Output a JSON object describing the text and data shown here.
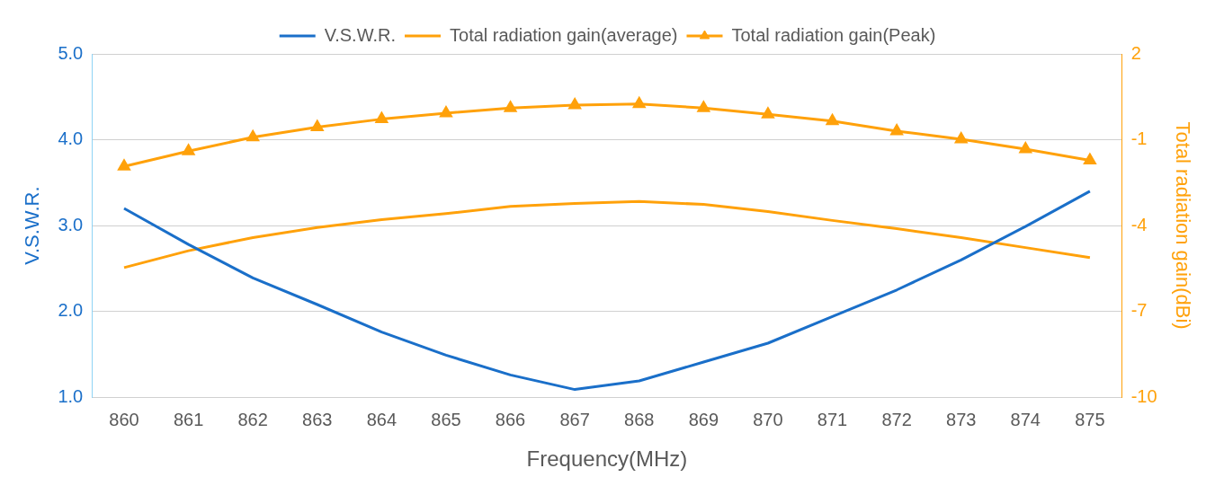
{
  "chart_data": {
    "type": "line",
    "categories": [
      "860",
      "861",
      "862",
      "863",
      "864",
      "865",
      "866",
      "867",
      "868",
      "869",
      "870",
      "871",
      "872",
      "873",
      "874",
      "875"
    ],
    "series": [
      {
        "name": "V.S.W.R.",
        "color": "#1a6fc9",
        "marker": "none",
        "values": [
          3.2,
          2.78,
          2.39,
          2.08,
          1.76,
          1.49,
          1.26,
          1.09,
          1.19,
          1.41,
          1.63,
          1.94,
          2.25,
          2.6,
          2.99,
          3.4
        ]
      },
      {
        "name": "Total radiation gain(average)",
        "color": "#ffa10a",
        "marker": "none",
        "axis": "y2",
        "values": [
          -5.47,
          -4.88,
          -4.42,
          -4.07,
          -3.79,
          -3.58,
          -3.33,
          -3.23,
          -3.16,
          -3.26,
          -3.51,
          -3.82,
          -4.11,
          -4.42,
          -4.77,
          -5.12
        ]
      },
      {
        "name": "Total radiation gain(Peak)",
        "color": "#ffa10a",
        "marker": "triangle",
        "axis": "y2",
        "values": [
          -1.93,
          -1.4,
          -0.91,
          -0.56,
          -0.28,
          -0.07,
          0.11,
          0.21,
          0.25,
          0.11,
          -0.11,
          -0.35,
          -0.7,
          -0.98,
          -1.33,
          -1.72
        ]
      }
    ],
    "xlabel": "Frequency(MHz)",
    "ylabel": "V.S.W.R.",
    "y2label": "Total radiation gain(dBi)",
    "ylim": [
      1,
      5
    ],
    "yticks": [
      {
        "value": 1,
        "label": "1.0"
      },
      {
        "value": 2,
        "label": "2.0"
      },
      {
        "value": 3,
        "label": "3.0"
      },
      {
        "value": 4,
        "label": "4.0"
      },
      {
        "value": 5,
        "label": "5.0"
      }
    ],
    "y2lim": [
      -10,
      2
    ],
    "y2ticks": [
      -10,
      -7,
      -4,
      -1,
      2
    ],
    "grid": "y",
    "legend": "top",
    "line_style": "solid"
  }
}
